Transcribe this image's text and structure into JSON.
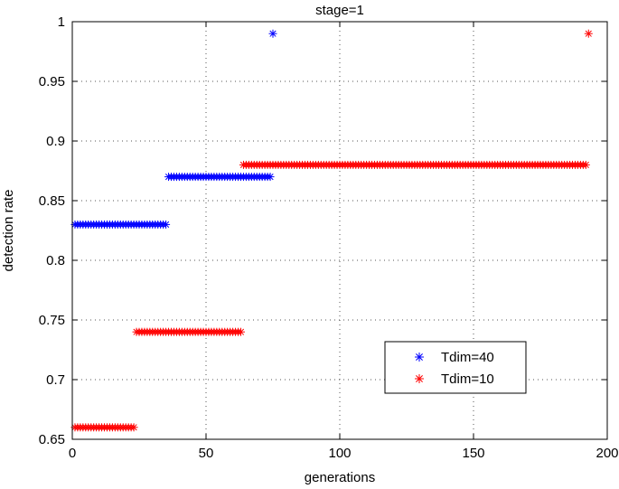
{
  "chart_data": {
    "type": "scatter",
    "title": "stage=1",
    "xlabel": "generations",
    "ylabel": "detection rate",
    "xlim": [
      0,
      200
    ],
    "ylim": [
      0.65,
      1
    ],
    "xticks": [
      0,
      50,
      100,
      150,
      200
    ],
    "yticks": [
      0.65,
      0.7,
      0.75,
      0.8,
      0.85,
      0.9,
      0.95,
      1
    ],
    "xtick_labels": [
      "0",
      "50",
      "100",
      "150",
      "200"
    ],
    "ytick_labels": [
      "0.65",
      "0.7",
      "0.75",
      "0.8",
      "0.85",
      "0.9",
      "0.95",
      "1"
    ],
    "grid": true,
    "legend_position": "lower-right",
    "marker": "asterisk",
    "series": [
      {
        "name": "Tdim=40",
        "color": "#0000ff",
        "segments": [
          {
            "x_start": 1,
            "x_end": 35,
            "y": 0.83
          },
          {
            "x_start": 36,
            "x_end": 74,
            "y": 0.87
          },
          {
            "x_start": 75,
            "x_end": 75,
            "y": 0.99
          }
        ]
      },
      {
        "name": "Tdim=10",
        "color": "#ff0000",
        "segments": [
          {
            "x_start": 1,
            "x_end": 23,
            "y": 0.66
          },
          {
            "x_start": 24,
            "x_end": 63,
            "y": 0.74
          },
          {
            "x_start": 64,
            "x_end": 192,
            "y": 0.88
          },
          {
            "x_start": 193,
            "x_end": 193,
            "y": 0.99
          }
        ]
      }
    ]
  }
}
